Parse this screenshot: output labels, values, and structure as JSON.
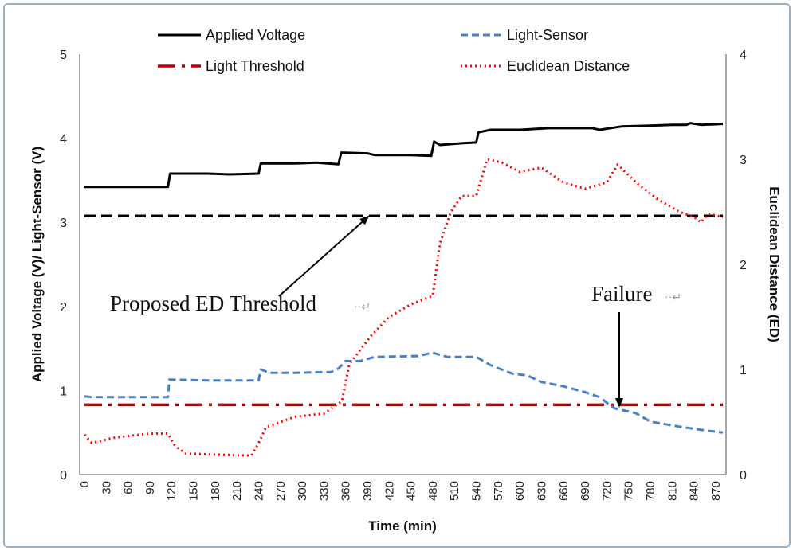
{
  "chart_data": {
    "type": "line",
    "title": "",
    "xlabel": "Time (min)",
    "ylabel_left": "Applied Voltage (V)/ Light-Sensor (V)",
    "ylabel_right": "Euclidean Distance (ED)",
    "xlim": [
      0,
      880
    ],
    "ylim_left": [
      0,
      5
    ],
    "ylim_right": [
      0,
      4
    ],
    "x_ticks": [
      "0",
      "30",
      "60",
      "90",
      "120",
      "150",
      "180",
      "210",
      "240",
      "270",
      "300",
      "330",
      "360",
      "390",
      "420",
      "450",
      "480",
      "510",
      "540",
      "570",
      "600",
      "630",
      "660",
      "690",
      "720",
      "750",
      "780",
      "810",
      "840",
      "870"
    ],
    "y_ticks_left": [
      "0",
      "1",
      "2",
      "3",
      "4",
      "5"
    ],
    "y_ticks_right": [
      "0",
      "1",
      "2",
      "3",
      "4"
    ],
    "legend": [
      {
        "name": "Applied Voltage",
        "color": "#000000",
        "style": "solid"
      },
      {
        "name": "Light-Sensor",
        "color": "#4a7fc1",
        "style": "dashed"
      },
      {
        "name": "Light Threshold",
        "color": "#c00000",
        "style": "dash-dot"
      },
      {
        "name": "Euclidean Distance",
        "color": "#ff0000",
        "style": "dotted"
      }
    ],
    "series": [
      {
        "name": "Applied Voltage",
        "axis": "left",
        "points": [
          [
            0,
            3.42
          ],
          [
            115,
            3.42
          ],
          [
            118,
            3.58
          ],
          [
            170,
            3.58
          ],
          [
            200,
            3.57
          ],
          [
            240,
            3.58
          ],
          [
            243,
            3.7
          ],
          [
            290,
            3.7
          ],
          [
            320,
            3.71
          ],
          [
            335,
            3.7
          ],
          [
            350,
            3.69
          ],
          [
            354,
            3.83
          ],
          [
            390,
            3.82
          ],
          [
            400,
            3.8
          ],
          [
            450,
            3.8
          ],
          [
            478,
            3.79
          ],
          [
            482,
            3.96
          ],
          [
            490,
            3.92
          ],
          [
            520,
            3.94
          ],
          [
            540,
            3.95
          ],
          [
            543,
            4.07
          ],
          [
            560,
            4.1
          ],
          [
            600,
            4.1
          ],
          [
            640,
            4.12
          ],
          [
            700,
            4.12
          ],
          [
            710,
            4.1
          ],
          [
            740,
            4.14
          ],
          [
            780,
            4.15
          ],
          [
            810,
            4.16
          ],
          [
            830,
            4.16
          ],
          [
            835,
            4.18
          ],
          [
            850,
            4.16
          ],
          [
            880,
            4.17
          ]
        ]
      },
      {
        "name": "Light-Sensor",
        "axis": "left",
        "points": [
          [
            0,
            0.93
          ],
          [
            10,
            0.92
          ],
          [
            110,
            0.92
          ],
          [
            115,
            0.92
          ],
          [
            117,
            1.13
          ],
          [
            170,
            1.12
          ],
          [
            230,
            1.12
          ],
          [
            240,
            1.12
          ],
          [
            243,
            1.25
          ],
          [
            255,
            1.21
          ],
          [
            290,
            1.21
          ],
          [
            340,
            1.22
          ],
          [
            350,
            1.26
          ],
          [
            360,
            1.35
          ],
          [
            380,
            1.35
          ],
          [
            400,
            1.4
          ],
          [
            460,
            1.41
          ],
          [
            480,
            1.45
          ],
          [
            500,
            1.4
          ],
          [
            540,
            1.4
          ],
          [
            560,
            1.3
          ],
          [
            590,
            1.2
          ],
          [
            610,
            1.18
          ],
          [
            630,
            1.1
          ],
          [
            660,
            1.05
          ],
          [
            690,
            0.98
          ],
          [
            710,
            0.92
          ],
          [
            730,
            0.79
          ],
          [
            760,
            0.73
          ],
          [
            780,
            0.63
          ],
          [
            820,
            0.57
          ],
          [
            860,
            0.52
          ],
          [
            880,
            0.5
          ]
        ]
      },
      {
        "name": "Light Threshold",
        "axis": "left",
        "points": [
          [
            0,
            0.83
          ],
          [
            880,
            0.83
          ]
        ]
      },
      {
        "name": "Euclidean Distance",
        "axis": "right",
        "points": [
          [
            0,
            0.38
          ],
          [
            10,
            0.3
          ],
          [
            40,
            0.35
          ],
          [
            90,
            0.39
          ],
          [
            115,
            0.39
          ],
          [
            125,
            0.27
          ],
          [
            140,
            0.2
          ],
          [
            180,
            0.19
          ],
          [
            230,
            0.18
          ],
          [
            240,
            0.3
          ],
          [
            250,
            0.45
          ],
          [
            290,
            0.55
          ],
          [
            330,
            0.58
          ],
          [
            345,
            0.65
          ],
          [
            355,
            0.7
          ],
          [
            365,
            1.05
          ],
          [
            395,
            1.32
          ],
          [
            420,
            1.5
          ],
          [
            450,
            1.62
          ],
          [
            480,
            1.7
          ],
          [
            490,
            2.2
          ],
          [
            505,
            2.5
          ],
          [
            520,
            2.65
          ],
          [
            540,
            2.65
          ],
          [
            555,
            3.0
          ],
          [
            575,
            2.97
          ],
          [
            600,
            2.88
          ],
          [
            630,
            2.92
          ],
          [
            660,
            2.78
          ],
          [
            690,
            2.72
          ],
          [
            720,
            2.78
          ],
          [
            735,
            2.95
          ],
          [
            760,
            2.78
          ],
          [
            790,
            2.62
          ],
          [
            820,
            2.5
          ],
          [
            840,
            2.45
          ],
          [
            850,
            2.4
          ],
          [
            860,
            2.48
          ],
          [
            880,
            2.45
          ]
        ]
      }
    ],
    "ed_threshold_level": 2.46
  },
  "annotations": {
    "proposed_threshold": "Proposed ED Threshold",
    "failure": "Failure"
  },
  "colors": {
    "voltage": "#000000",
    "light_sensor": "#4a7fc1",
    "light_threshold": "#c00000",
    "euclidean": "#ff0000",
    "ed_threshold": "#000000",
    "frame": "#9ab0c4"
  }
}
